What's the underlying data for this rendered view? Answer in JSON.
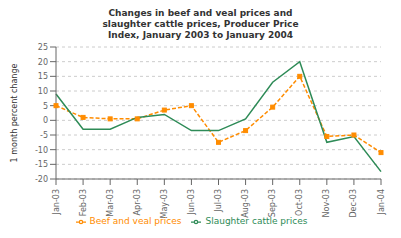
{
  "chart_data": {
    "type": "line",
    "title": "Changes in beef and veal prices and\nslaughter cattle prices, Producer Price\nIndex, January 2003 to January 2004",
    "y_label": "1 month percent change",
    "categories": [
      "Jan-03",
      "Feb-03",
      "Mar-03",
      "Apr-03",
      "May-03",
      "Jun-03",
      "Jul-03",
      "Aug-03",
      "Sep-03",
      "Oct-03",
      "Nov-03",
      "Dec-03",
      "Jan-04"
    ],
    "series": [
      {
        "name": "Beef and veal prices",
        "color": "#FF8C00",
        "marker": "square",
        "line_style": "dashed",
        "values": [
          5.0,
          1.0,
          0.5,
          0.5,
          3.5,
          5.0,
          -7.5,
          -3.5,
          4.5,
          15.0,
          -5.5,
          -5.0,
          -11.0
        ]
      },
      {
        "name": "Slaughter cattle prices",
        "color": "#2E8B57",
        "marker": "none",
        "line_style": "solid",
        "values": [
          9.0,
          -3.0,
          -3.0,
          1.0,
          2.0,
          -3.5,
          -3.5,
          0.5,
          13.0,
          20.0,
          -7.5,
          -5.5,
          -17.5
        ]
      }
    ],
    "ylim": [
      -20,
      25
    ],
    "yticks": [
      -20,
      -15,
      -10,
      -5,
      0,
      5,
      10,
      15,
      20,
      25
    ],
    "grid": true,
    "legend": "bottom"
  }
}
